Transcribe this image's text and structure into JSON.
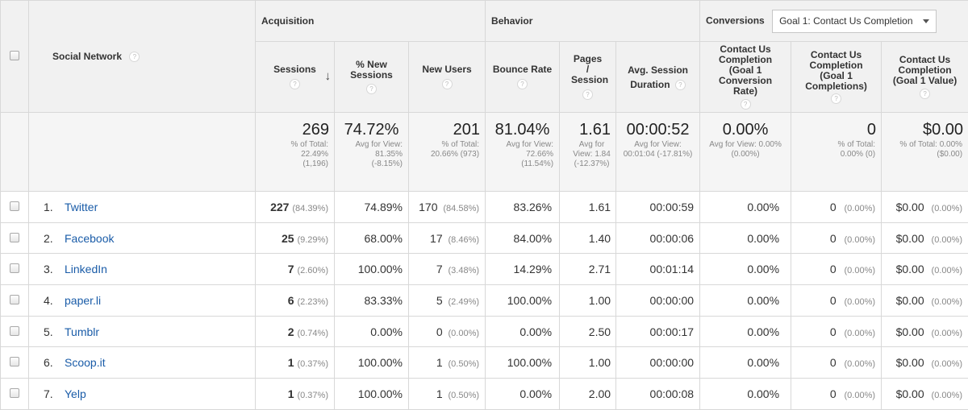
{
  "header": {
    "social_network": "Social Network",
    "acquisition": "Acquisition",
    "behavior": "Behavior",
    "conversions": "Conversions",
    "goal_select": "Goal 1: Contact Us Completion",
    "help": "?",
    "columns": {
      "sessions": "Sessions",
      "pct_new_sessions": "% New Sessions",
      "new_users": "New Users",
      "bounce_rate": "Bounce Rate",
      "pages_session": "Pages / Session",
      "avg_session_duration": "Avg. Session Duration",
      "conv_rate": "Contact Us Completion (Goal 1 Conversion Rate)",
      "completions": "Contact Us Completion (Goal 1 Completions)",
      "value": "Contact Us Completion (Goal 1 Value)"
    }
  },
  "totals": {
    "sessions": {
      "value": "269",
      "sub": "% of Total: 22.49% (1,196)"
    },
    "pct_new_sessions": {
      "value": "74.72%",
      "sub": "Avg for View: 81.35% (-8.15%)"
    },
    "new_users": {
      "value": "201",
      "sub": "% of Total: 20.66% (973)"
    },
    "bounce_rate": {
      "value": "81.04%",
      "sub": "Avg for View: 72.66% (11.54%)"
    },
    "pages_session": {
      "value": "1.61",
      "sub": "Avg for View: 1.84 (-12.37%)"
    },
    "avg_session_duration": {
      "value": "00:00:52",
      "sub": "Avg for View: 00:01:04 (-17.81%)"
    },
    "conv_rate": {
      "value": "0.00%",
      "sub": "Avg for View: 0.00% (0.00%)"
    },
    "completions": {
      "value": "0",
      "sub": "% of Total: 0.00% (0)"
    },
    "value": {
      "value": "$0.00",
      "sub": "% of Total: 0.00% ($0.00)"
    }
  },
  "rows": [
    {
      "index": "1.",
      "name": "Twitter",
      "sessions": "227",
      "sessions_pct": "(84.39%)",
      "pct_new": "74.89%",
      "new_users": "170",
      "new_users_pct": "(84.58%)",
      "bounce": "83.26%",
      "pages": "1.61",
      "duration": "00:00:59",
      "conv_rate": "0.00%",
      "completions": "0",
      "completions_pct": "(0.00%)",
      "value": "$0.00",
      "value_pct": "(0.00%)"
    },
    {
      "index": "2.",
      "name": "Facebook",
      "sessions": "25",
      "sessions_pct": "(9.29%)",
      "pct_new": "68.00%",
      "new_users": "17",
      "new_users_pct": "(8.46%)",
      "bounce": "84.00%",
      "pages": "1.40",
      "duration": "00:00:06",
      "conv_rate": "0.00%",
      "completions": "0",
      "completions_pct": "(0.00%)",
      "value": "$0.00",
      "value_pct": "(0.00%)"
    },
    {
      "index": "3.",
      "name": "LinkedIn",
      "sessions": "7",
      "sessions_pct": "(2.60%)",
      "pct_new": "100.00%",
      "new_users": "7",
      "new_users_pct": "(3.48%)",
      "bounce": "14.29%",
      "pages": "2.71",
      "duration": "00:01:14",
      "conv_rate": "0.00%",
      "completions": "0",
      "completions_pct": "(0.00%)",
      "value": "$0.00",
      "value_pct": "(0.00%)"
    },
    {
      "index": "4.",
      "name": "paper.li",
      "sessions": "6",
      "sessions_pct": "(2.23%)",
      "pct_new": "83.33%",
      "new_users": "5",
      "new_users_pct": "(2.49%)",
      "bounce": "100.00%",
      "pages": "1.00",
      "duration": "00:00:00",
      "conv_rate": "0.00%",
      "completions": "0",
      "completions_pct": "(0.00%)",
      "value": "$0.00",
      "value_pct": "(0.00%)"
    },
    {
      "index": "5.",
      "name": "Tumblr",
      "sessions": "2",
      "sessions_pct": "(0.74%)",
      "pct_new": "0.00%",
      "new_users": "0",
      "new_users_pct": "(0.00%)",
      "bounce": "0.00%",
      "pages": "2.50",
      "duration": "00:00:17",
      "conv_rate": "0.00%",
      "completions": "0",
      "completions_pct": "(0.00%)",
      "value": "$0.00",
      "value_pct": "(0.00%)"
    },
    {
      "index": "6.",
      "name": "Scoop.it",
      "sessions": "1",
      "sessions_pct": "(0.37%)",
      "pct_new": "100.00%",
      "new_users": "1",
      "new_users_pct": "(0.50%)",
      "bounce": "100.00%",
      "pages": "1.00",
      "duration": "00:00:00",
      "conv_rate": "0.00%",
      "completions": "0",
      "completions_pct": "(0.00%)",
      "value": "$0.00",
      "value_pct": "(0.00%)"
    },
    {
      "index": "7.",
      "name": "Yelp",
      "sessions": "1",
      "sessions_pct": "(0.37%)",
      "pct_new": "100.00%",
      "new_users": "1",
      "new_users_pct": "(0.50%)",
      "bounce": "0.00%",
      "pages": "2.00",
      "duration": "00:00:08",
      "conv_rate": "0.00%",
      "completions": "0",
      "completions_pct": "(0.00%)",
      "value": "$0.00",
      "value_pct": "(0.00%)"
    }
  ]
}
